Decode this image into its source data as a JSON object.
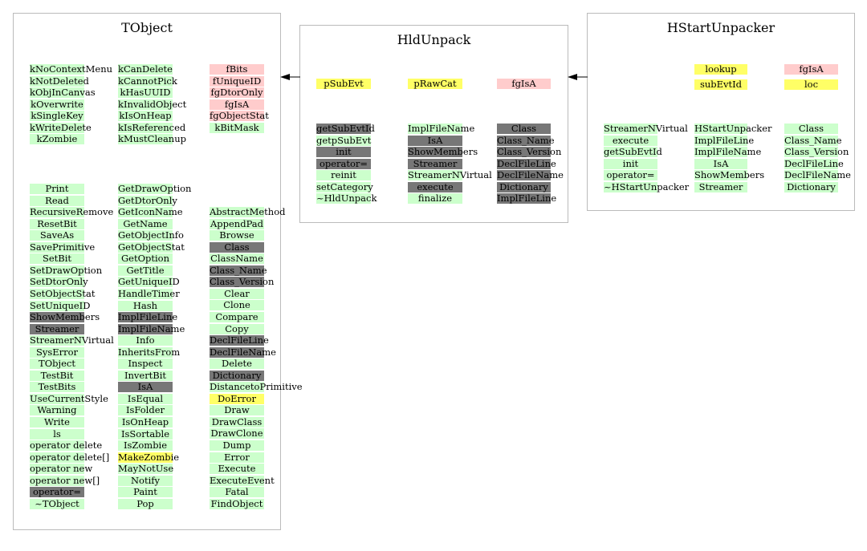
{
  "colors": {
    "method": "#ccffcc",
    "overridden": "#777777",
    "data_member": "#ffcccc",
    "pointer_member": "#ffff66"
  },
  "classes": [
    {
      "title": "TObject",
      "columns": [
        {
          "items": [
            [
              "kNoContextMenu",
              "green"
            ],
            [
              "kNotDeleted",
              "green"
            ],
            [
              "kObjInCanvas",
              "green"
            ],
            [
              "kOverwrite",
              "green"
            ],
            [
              "kSingleKey",
              "green"
            ],
            [
              "kWriteDelete",
              "green"
            ],
            [
              "kZombie",
              "green"
            ]
          ]
        },
        {
          "items": [
            [
              "kCanDelete",
              "green"
            ],
            [
              "kCannotPick",
              "green"
            ],
            [
              "kHasUUID",
              "green"
            ],
            [
              "kInvalidObject",
              "green"
            ],
            [
              "kIsOnHeap",
              "green"
            ],
            [
              "kIsReferenced",
              "green"
            ],
            [
              "kMustCleanup",
              "green"
            ]
          ]
        },
        {
          "items": [
            [
              "fBits",
              "pink"
            ],
            [
              "fUniqueID",
              "pink"
            ],
            [
              "fgDtorOnly",
              "pink"
            ],
            [
              "fgIsA",
              "pink"
            ],
            [
              "fgObjectStat",
              "pink"
            ],
            [
              "kBitMask",
              "green"
            ]
          ]
        },
        {
          "items": [
            [
              "Print",
              "green"
            ],
            [
              "Read",
              "green"
            ],
            [
              "RecursiveRemove",
              "green"
            ],
            [
              "ResetBit",
              "green"
            ],
            [
              "SaveAs",
              "green"
            ],
            [
              "SavePrimitive",
              "green"
            ],
            [
              "SetBit",
              "green"
            ],
            [
              "SetDrawOption",
              "green"
            ],
            [
              "SetDtorOnly",
              "green"
            ],
            [
              "SetObjectStat",
              "green"
            ],
            [
              "SetUniqueID",
              "green"
            ],
            [
              "ShowMembers",
              "gray"
            ],
            [
              "Streamer",
              "gray"
            ],
            [
              "StreamerNVirtual",
              "green"
            ],
            [
              "SysError",
              "green"
            ],
            [
              "TObject",
              "green"
            ],
            [
              "TestBit",
              "green"
            ],
            [
              "TestBits",
              "green"
            ],
            [
              "UseCurrentStyle",
              "green"
            ],
            [
              "Warning",
              "green"
            ],
            [
              "Write",
              "green"
            ],
            [
              "ls",
              "green"
            ],
            [
              "operator delete",
              "green"
            ],
            [
              "operator delete[]",
              "green"
            ],
            [
              "operator new",
              "green"
            ],
            [
              "operator new[]",
              "green"
            ],
            [
              "operator=",
              "gray"
            ],
            [
              "~TObject",
              "green"
            ]
          ]
        },
        {
          "items": [
            [
              "GetDrawOption",
              "green"
            ],
            [
              "GetDtorOnly",
              "green"
            ],
            [
              "GetIconName",
              "green"
            ],
            [
              "GetName",
              "green"
            ],
            [
              "GetObjectInfo",
              "green"
            ],
            [
              "GetObjectStat",
              "green"
            ],
            [
              "GetOption",
              "green"
            ],
            [
              "GetTitle",
              "green"
            ],
            [
              "GetUniqueID",
              "green"
            ],
            [
              "HandleTimer",
              "green"
            ],
            [
              "Hash",
              "green"
            ],
            [
              "ImplFileLine",
              "gray"
            ],
            [
              "ImplFileName",
              "gray"
            ],
            [
              "Info",
              "green"
            ],
            [
              "InheritsFrom",
              "green"
            ],
            [
              "Inspect",
              "green"
            ],
            [
              "InvertBit",
              "green"
            ],
            [
              "IsA",
              "gray"
            ],
            [
              "IsEqual",
              "green"
            ],
            [
              "IsFolder",
              "green"
            ],
            [
              "IsOnHeap",
              "green"
            ],
            [
              "IsSortable",
              "green"
            ],
            [
              "IsZombie",
              "green"
            ],
            [
              "MakeZombie",
              "yellow"
            ],
            [
              "MayNotUse",
              "green"
            ],
            [
              "Notify",
              "green"
            ],
            [
              "Paint",
              "green"
            ],
            [
              "Pop",
              "green"
            ]
          ]
        },
        {
          "items": [
            [
              "AbstractMethod",
              "green"
            ],
            [
              "AppendPad",
              "green"
            ],
            [
              "Browse",
              "green"
            ],
            [
              "Class",
              "gray"
            ],
            [
              "ClassName",
              "green"
            ],
            [
              "Class_Name",
              "gray"
            ],
            [
              "Class_Version",
              "gray"
            ],
            [
              "Clear",
              "green"
            ],
            [
              "Clone",
              "green"
            ],
            [
              "Compare",
              "green"
            ],
            [
              "Copy",
              "green"
            ],
            [
              "DeclFileLine",
              "gray"
            ],
            [
              "DeclFileName",
              "gray"
            ],
            [
              "Delete",
              "green"
            ],
            [
              "Dictionary",
              "gray"
            ],
            [
              "DistancetoPrimitive",
              "green"
            ],
            [
              "DoError",
              "yellow"
            ],
            [
              "Draw",
              "green"
            ],
            [
              "DrawClass",
              "green"
            ],
            [
              "DrawClone",
              "green"
            ],
            [
              "Dump",
              "green"
            ],
            [
              "Error",
              "green"
            ],
            [
              "Execute",
              "green"
            ],
            [
              "ExecuteEvent",
              "green"
            ],
            [
              "Fatal",
              "green"
            ],
            [
              "FindObject",
              "green"
            ]
          ]
        }
      ]
    },
    {
      "title": "HldUnpack",
      "columns": [
        {
          "items": [
            [
              "pSubEvt",
              "yellow"
            ]
          ]
        },
        {
          "items": [
            [
              "pRawCat",
              "yellow"
            ]
          ]
        },
        {
          "items": [
            [
              "fgIsA",
              "pink"
            ]
          ]
        },
        {
          "items": [
            [
              "getSubEvtId",
              "gray"
            ],
            [
              "getpSubEvt",
              "green"
            ],
            [
              "init",
              "gray"
            ],
            [
              "operator=",
              "gray"
            ],
            [
              "reinit",
              "green"
            ],
            [
              "setCategory",
              "green"
            ],
            [
              "~HldUnpack",
              "green"
            ]
          ]
        },
        {
          "items": [
            [
              "ImplFileName",
              "green"
            ],
            [
              "IsA",
              "gray"
            ],
            [
              "ShowMembers",
              "gray"
            ],
            [
              "Streamer",
              "gray"
            ],
            [
              "StreamerNVirtual",
              "green"
            ],
            [
              "execute",
              "gray"
            ],
            [
              "finalize",
              "green"
            ]
          ]
        },
        {
          "items": [
            [
              "Class",
              "gray"
            ],
            [
              "Class_Name",
              "gray"
            ],
            [
              "Class_Version",
              "gray"
            ],
            [
              "DeclFileLine",
              "gray"
            ],
            [
              "DeclFileName",
              "gray"
            ],
            [
              "Dictionary",
              "gray"
            ],
            [
              "ImplFileLine",
              "gray"
            ]
          ]
        }
      ]
    },
    {
      "title": "HStartUnpacker",
      "columns": [
        {
          "items": [
            [
              "lookup",
              "yellow"
            ],
            [
              "subEvtId",
              "yellow"
            ]
          ]
        },
        {
          "items": [
            [
              "fgIsA",
              "pink"
            ],
            [
              "loc",
              "yellow"
            ]
          ]
        },
        {
          "items": [
            [
              "StreamerNVirtual",
              "green"
            ],
            [
              "execute",
              "green"
            ],
            [
              "getSubEvtId",
              "green"
            ],
            [
              "init",
              "green"
            ],
            [
              "operator=",
              "green"
            ],
            [
              "~HStartUnpacker",
              "green"
            ]
          ]
        },
        {
          "items": [
            [
              "HStartUnpacker",
              "green"
            ],
            [
              "ImplFileLine",
              "green"
            ],
            [
              "ImplFileName",
              "green"
            ],
            [
              "IsA",
              "green"
            ],
            [
              "ShowMembers",
              "green"
            ],
            [
              "Streamer",
              "green"
            ]
          ]
        },
        {
          "items": [
            [
              "Class",
              "green"
            ],
            [
              "Class_Name",
              "green"
            ],
            [
              "Class_Version",
              "green"
            ],
            [
              "DeclFileLine",
              "green"
            ],
            [
              "DeclFileName",
              "green"
            ],
            [
              "Dictionary",
              "green"
            ]
          ]
        }
      ]
    }
  ]
}
